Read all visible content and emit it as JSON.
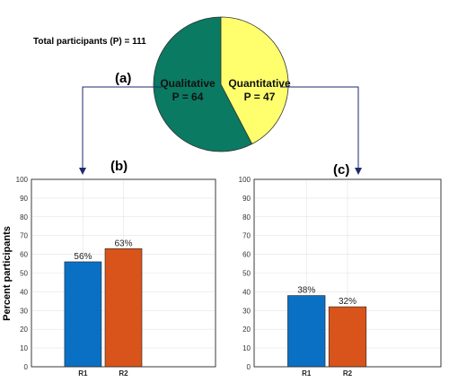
{
  "total_label": "Total participants (P) = 111",
  "colors": {
    "qualitative": "#0a7a62",
    "quantitative": "#ffff6e",
    "r1": "#0a70c4",
    "r2": "#d9541a",
    "panel_label": "#33aadd",
    "connector": "#1f2a6b",
    "grid": "#e3e3e3",
    "axis": "#333333"
  },
  "chart_data": [
    {
      "id": "a",
      "type": "pie",
      "panel_label": "(a)",
      "slices": [
        {
          "name": "Qualitative",
          "label": "P = 64",
          "value": 64,
          "color": "#0a7a62"
        },
        {
          "name": "Quantitative",
          "label": "P = 47",
          "value": 47,
          "color": "#ffff6e"
        }
      ]
    },
    {
      "id": "b",
      "type": "bar",
      "panel_label": "(b)",
      "categories": [
        "R1",
        "R2"
      ],
      "values": [
        56,
        63
      ],
      "value_labels": [
        "56%",
        "63%"
      ],
      "colors": [
        "#0a70c4",
        "#d9541a"
      ],
      "ylabel": "Percent participants",
      "ylim": [
        0,
        100
      ],
      "yticks": [
        "0",
        "10",
        "20",
        "30",
        "40",
        "50",
        "60",
        "70",
        "80",
        "90",
        "100"
      ],
      "grid": true
    },
    {
      "id": "c",
      "type": "bar",
      "panel_label": "(c)",
      "categories": [
        "R1",
        "R2"
      ],
      "values": [
        38,
        32
      ],
      "value_labels": [
        "38%",
        "32%"
      ],
      "colors": [
        "#0a70c4",
        "#d9541a"
      ],
      "ylabel": "",
      "ylim": [
        0,
        100
      ],
      "yticks": [
        "0",
        "10",
        "20",
        "30",
        "40",
        "50",
        "60",
        "70",
        "80",
        "90",
        "100"
      ],
      "grid": true
    }
  ]
}
